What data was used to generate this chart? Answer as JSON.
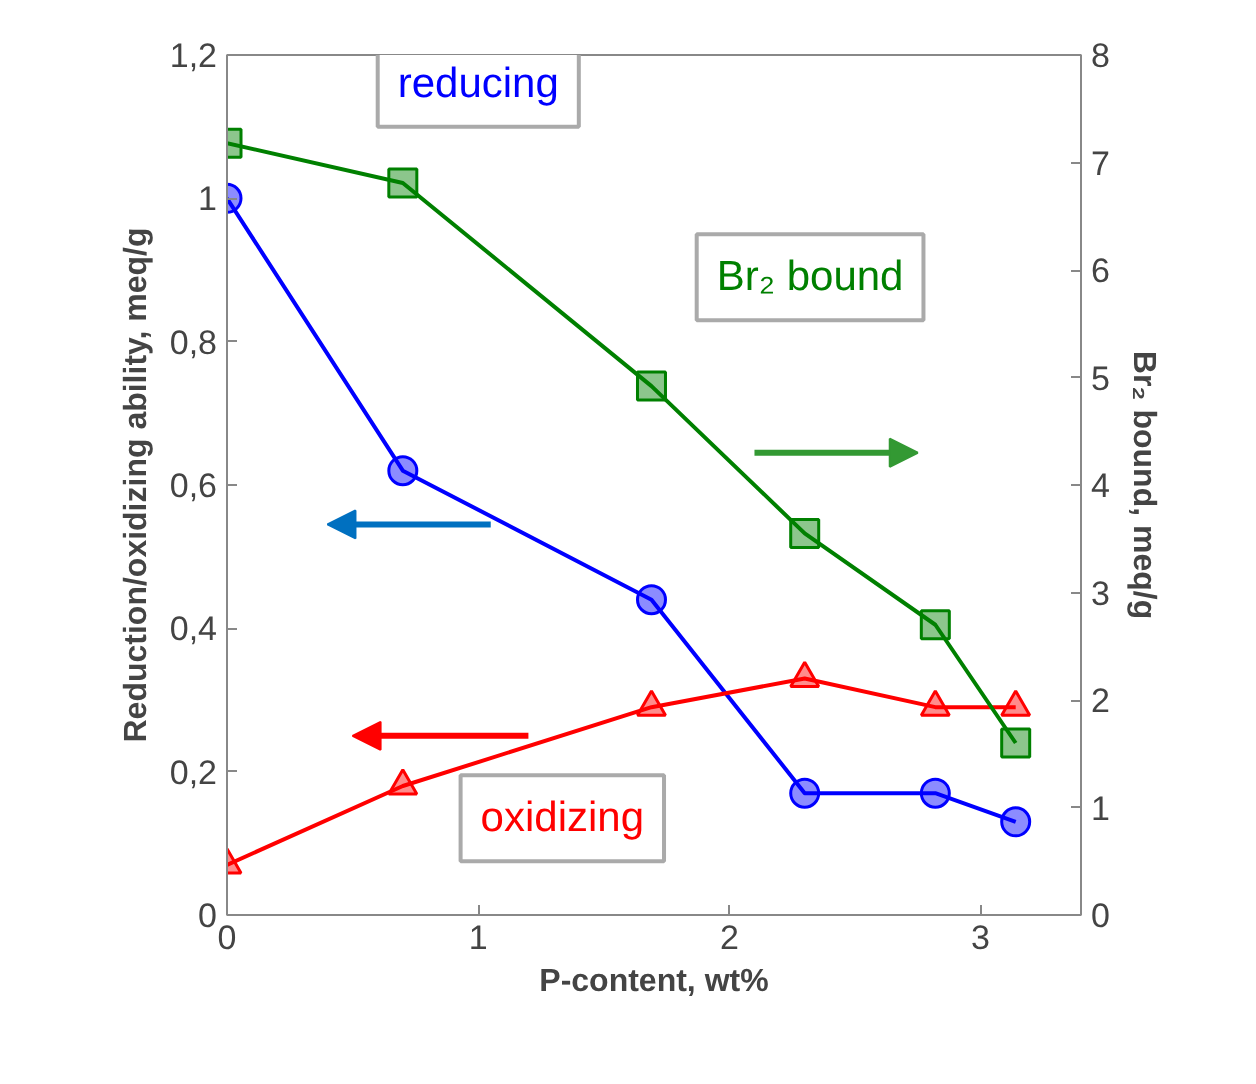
{
  "chart_data": {
    "type": "line",
    "xlabel": "P-content, wt%",
    "ylabel": "Reduction/oxidizing ability, meq/g",
    "y2label": "Br₂ bound, meq/g",
    "xlim": [
      0,
      3.4
    ],
    "xticks": [
      0,
      1,
      2,
      3
    ],
    "ylim": [
      0,
      1.2
    ],
    "yticks": [
      0,
      {
        "value": 0.2,
        "label": "0,2"
      },
      {
        "value": 0.4,
        "label": "0,4"
      },
      {
        "value": 0.6,
        "label": "0,6"
      },
      {
        "value": 0.8,
        "label": "0,8"
      },
      1,
      {
        "value": 1.2,
        "label": "1,2"
      }
    ],
    "y2lim": [
      0,
      8
    ],
    "y2ticks": [
      0,
      1,
      2,
      3,
      4,
      5,
      6,
      7,
      8
    ],
    "grid": false,
    "series": [
      {
        "name": "reducing",
        "color": "#0000ff",
        "marker": "circle",
        "x": [
          0,
          0.7,
          1.69,
          2.3,
          2.82,
          3.14
        ],
        "values": [
          1.0,
          0.62,
          0.44,
          0.17,
          0.17,
          0.13
        ]
      },
      {
        "name": "oxidizing",
        "color": "#ff0000",
        "marker": "triangle",
        "x": [
          0,
          0.7,
          1.69,
          2.3,
          2.82,
          3.14
        ],
        "values": [
          0.07,
          0.18,
          0.29,
          0.33,
          0.29,
          0.29
        ]
      },
      {
        "name": "Br₂ bound",
        "color": "#008000",
        "marker": "square",
        "axis": "y2",
        "x": [
          0,
          0.7,
          1.69,
          2.3,
          2.82,
          3.14
        ],
        "values": [
          7.18,
          6.81,
          4.92,
          3.55,
          2.7,
          1.6
        ]
      }
    ]
  }
}
